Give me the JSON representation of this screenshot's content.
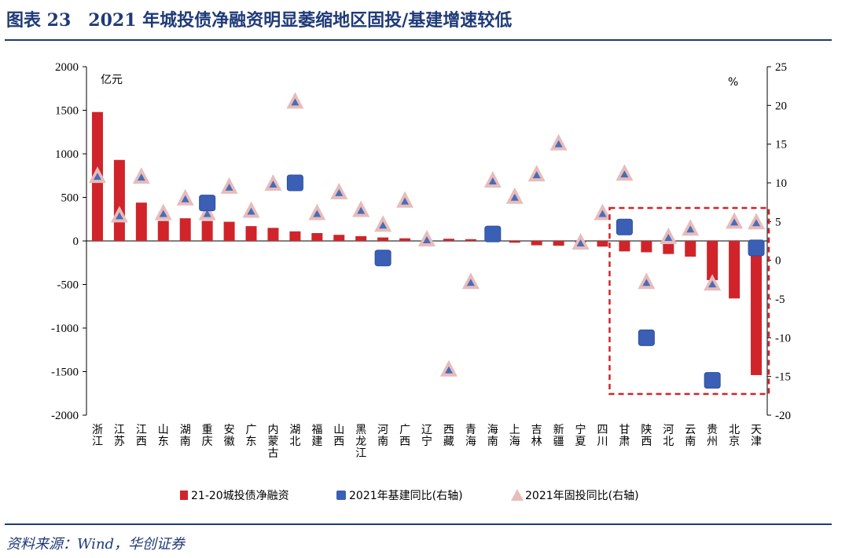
{
  "figure": {
    "title": "图表 23　2021 年城投债净融资明显萎缩地区固投/基建增速较低",
    "source": "资料来源：Wind，华创证券"
  },
  "colors": {
    "bar": "#d0242a",
    "square": "#3a5fb5",
    "triangle_fill": "#e7bcbc",
    "triangle_inner": "#4a6db5",
    "highlight": "#d0242a",
    "title": "#1f3a78"
  },
  "chart_data": {
    "type": "bar",
    "title": "2021 年城投债净融资明显萎缩地区固投/基建增速较低",
    "left_axis": {
      "unit": "亿元",
      "ylim": [
        -2000,
        2000
      ],
      "ticks": [
        "2000",
        "1500",
        "1000",
        "500",
        "0",
        "-500",
        "-1000",
        "-1500",
        "-2000"
      ]
    },
    "right_axis": {
      "unit": "%",
      "ylim": [
        -20,
        25
      ],
      "ticks": [
        "25",
        "20",
        "15",
        "10",
        "5",
        "0",
        "-5",
        "-10",
        "-15",
        "-20"
      ]
    },
    "categories": [
      "浙江",
      "江苏",
      "江西",
      "山东",
      "湖南",
      "重庆",
      "安徽",
      "广东",
      "内蒙古",
      "湖北",
      "福建",
      "山西",
      "黑龙江",
      "河南",
      "广西",
      "辽宁",
      "西藏",
      "青海",
      "海南",
      "上海",
      "吉林",
      "新疆",
      "宁夏",
      "四川",
      "甘肃",
      "陕西",
      "河北",
      "云南",
      "贵州",
      "北京",
      "天津"
    ],
    "series": [
      {
        "name": "21-20城投债净融资",
        "axis": "left",
        "kind": "bar",
        "values": [
          1480,
          930,
          440,
          230,
          260,
          230,
          220,
          170,
          150,
          110,
          90,
          70,
          55,
          40,
          30,
          10,
          25,
          20,
          15,
          -20,
          -50,
          -55,
          -20,
          -65,
          -120,
          -130,
          -150,
          -180,
          -450,
          -660,
          -1540
        ]
      },
      {
        "name": "2021年基建同比(右轴)",
        "axis": "right",
        "kind": "square",
        "values": [
          null,
          null,
          null,
          null,
          null,
          7.4,
          null,
          null,
          null,
          10.0,
          null,
          null,
          null,
          0.3,
          null,
          null,
          null,
          null,
          3.4,
          null,
          null,
          null,
          null,
          null,
          4.3,
          -10.0,
          null,
          null,
          -15.5,
          null,
          1.6
        ]
      },
      {
        "name": "2021年固投同比(右轴)",
        "axis": "right",
        "kind": "triangle",
        "values": [
          10.8,
          5.7,
          10.7,
          6.0,
          7.9,
          6.0,
          9.4,
          6.3,
          9.8,
          20.4,
          6.0,
          8.7,
          6.4,
          4.5,
          7.6,
          2.6,
          -14.2,
          -2.9,
          10.2,
          8.1,
          11.0,
          15.0,
          2.2,
          6.0,
          11.1,
          -2.9,
          2.9,
          4.0,
          -3.1,
          4.9,
          4.8
        ]
      }
    ],
    "annotation": "highlight box around 甘肃–天津 (dashed red)",
    "legend_position": "bottom-center"
  }
}
